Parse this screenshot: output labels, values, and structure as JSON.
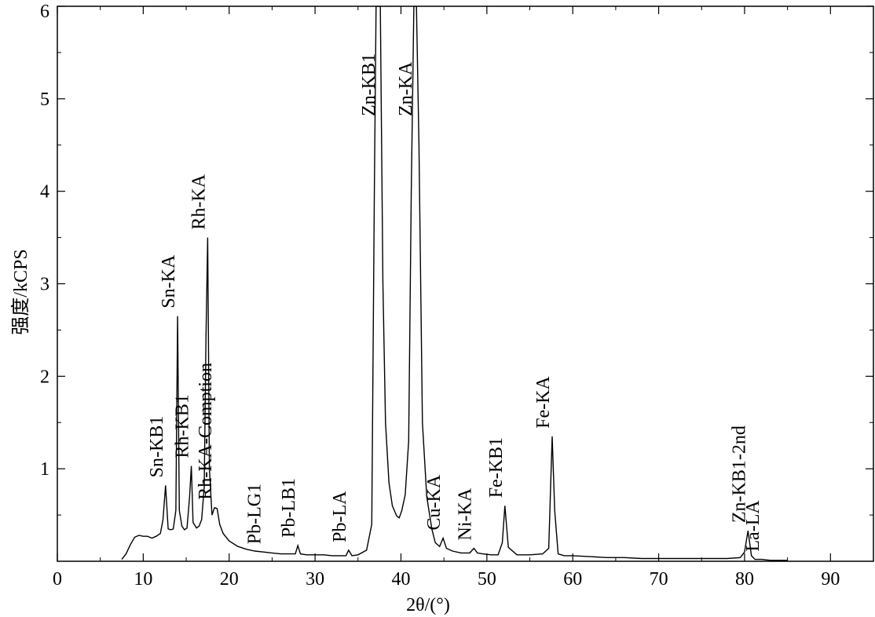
{
  "chart_data": {
    "type": "line",
    "xlabel": "2θ/(°)",
    "ylabel": "强度/kCPS",
    "xlim": [
      0,
      95
    ],
    "ylim": [
      0,
      6
    ],
    "xticks": [
      0,
      10,
      20,
      30,
      40,
      50,
      60,
      70,
      80,
      90
    ],
    "yticks": [
      1,
      2,
      3,
      4,
      5,
      6
    ],
    "grid": false,
    "series": [
      {
        "x": [
          7.5,
          8.0,
          8.5,
          9.0,
          9.5,
          10.0,
          10.5,
          11.0,
          11.5,
          12.0,
          12.3,
          12.6,
          12.9,
          13.2,
          13.5,
          13.8,
          14.0,
          14.2,
          14.5,
          14.8,
          15.1,
          15.4,
          15.6,
          15.8,
          16.2,
          16.5,
          16.8,
          17.1,
          17.3,
          17.5,
          17.7,
          18.0,
          18.3,
          18.6,
          18.9,
          19.3,
          20.0,
          21.0,
          22.0,
          23.0,
          24.0,
          25.0,
          26.0,
          27.0,
          27.7,
          28.0,
          28.3,
          29.0,
          30.0,
          31.0,
          32.0,
          33.0,
          33.6,
          33.9,
          34.3,
          35.0,
          36.0,
          36.6,
          36.9,
          37.1,
          37.3,
          37.6,
          37.9,
          38.2,
          38.6,
          39.0,
          39.5,
          39.8,
          40.1,
          40.5,
          40.9,
          41.2,
          41.5,
          41.8,
          42.1,
          42.5,
          43.0,
          43.6,
          44.0,
          44.5,
          44.9,
          45.3,
          46.0,
          47.0,
          48.0,
          48.5,
          48.9,
          49.5,
          50.5,
          51.3,
          51.8,
          52.1,
          52.5,
          53.5,
          55.0,
          56.5,
          57.2,
          57.6,
          57.9,
          58.3,
          59.0,
          60.0,
          62.0,
          64.0,
          66.0,
          68.0,
          70.0,
          72.0,
          74.0,
          76.0,
          78.0,
          79.5,
          80.0,
          80.4,
          80.8,
          81.2,
          82.0,
          83.0,
          84.0,
          85.0
        ],
        "values": [
          0.02,
          0.08,
          0.18,
          0.26,
          0.28,
          0.27,
          0.27,
          0.25,
          0.27,
          0.3,
          0.45,
          0.82,
          0.35,
          0.34,
          0.35,
          0.55,
          2.65,
          0.55,
          0.38,
          0.34,
          0.36,
          0.7,
          1.03,
          0.42,
          0.36,
          0.38,
          0.45,
          0.8,
          2.4,
          3.5,
          1.0,
          0.5,
          0.58,
          0.57,
          0.4,
          0.3,
          0.22,
          0.16,
          0.13,
          0.11,
          0.1,
          0.09,
          0.08,
          0.08,
          0.08,
          0.17,
          0.08,
          0.07,
          0.07,
          0.07,
          0.06,
          0.06,
          0.06,
          0.12,
          0.06,
          0.07,
          0.12,
          0.4,
          4.0,
          6.0,
          6.0,
          6.0,
          3.0,
          1.5,
          0.85,
          0.6,
          0.49,
          0.47,
          0.55,
          0.72,
          1.3,
          4.0,
          6.0,
          6.0,
          4.5,
          1.5,
          0.7,
          0.35,
          0.2,
          0.16,
          0.25,
          0.14,
          0.11,
          0.09,
          0.09,
          0.14,
          0.09,
          0.08,
          0.07,
          0.07,
          0.2,
          0.6,
          0.15,
          0.07,
          0.07,
          0.08,
          0.14,
          1.35,
          0.55,
          0.08,
          0.06,
          0.06,
          0.05,
          0.04,
          0.04,
          0.03,
          0.03,
          0.03,
          0.03,
          0.03,
          0.03,
          0.04,
          0.1,
          0.33,
          0.06,
          0.02,
          0.02,
          0.01,
          0.01,
          0.01
        ]
      }
    ],
    "annotations": [
      {
        "text": "Sn-KB1",
        "x": 12.6,
        "y": 0.82
      },
      {
        "text": "Sn-KA",
        "x": 14.0,
        "y": 2.65
      },
      {
        "text": "Rh-KB1",
        "x": 15.6,
        "y": 1.03
      },
      {
        "text": "Rh-KA",
        "x": 17.5,
        "y": 3.5
      },
      {
        "text": "Rh-KA-Comption",
        "x": 18.3,
        "y": 0.58
      },
      {
        "text": "Pb-LG1",
        "x": 24.0,
        "y": 0.1
      },
      {
        "text": "Pb-LB1",
        "x": 28.0,
        "y": 0.17
      },
      {
        "text": "Pb-LA",
        "x": 33.9,
        "y": 0.12
      },
      {
        "text": "Zn-KB1",
        "x": 37.3,
        "y": 6.0
      },
      {
        "text": "Zn-KA",
        "x": 41.6,
        "y": 6.0
      },
      {
        "text": "Cu-KA",
        "x": 44.9,
        "y": 0.25
      },
      {
        "text": "Ni-KA",
        "x": 48.5,
        "y": 0.14
      },
      {
        "text": "Fe-KB1",
        "x": 52.1,
        "y": 0.6
      },
      {
        "text": "Fe-KA",
        "x": 57.6,
        "y": 1.35
      },
      {
        "text": "Zn-KB1-2nd",
        "x": 80.4,
        "y": 0.33
      },
      {
        "text": "La-LA",
        "x": 82.0,
        "y": 0.02
      }
    ]
  }
}
